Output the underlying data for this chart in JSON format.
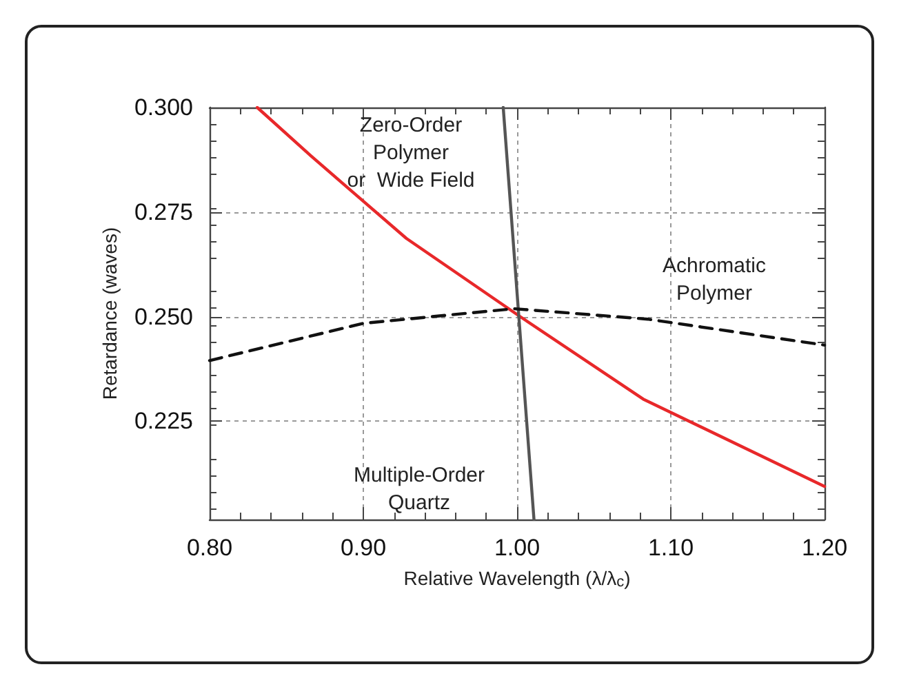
{
  "chart_data": {
    "type": "line",
    "xlabel": "Relative Wavelength (λ/λ$_{c}$)",
    "ylabel": "Retardance (waves)",
    "xlim": [
      0.8,
      1.2
    ],
    "ylim": [
      0.2015,
      0.3
    ],
    "xticks": [
      {
        "value": 0.8,
        "label": "0.80"
      },
      {
        "value": 0.9,
        "label": "0.90"
      },
      {
        "value": 1.0,
        "label": "1.00"
      },
      {
        "value": 1.1,
        "label": "1.10"
      },
      {
        "value": 1.2,
        "label": "1.20"
      }
    ],
    "yticks": [
      0.225,
      {
        "value": 0.25,
        "label": "0.250"
      },
      0.275,
      {
        "value": 0.3,
        "label": "0.300"
      }
    ],
    "grid": true,
    "marker": "none",
    "series": [
      {
        "color": "#e8282a",
        "line_style": "solid",
        "x": [
          0.831,
          0.866,
          0.928,
          1.002,
          1.082,
          1.2
        ],
        "values": [
          0.3,
          0.2884,
          0.2687,
          0.25,
          0.2303,
          0.2094
        ]
      },
      {
        "color": "#555555",
        "line_style": "solid",
        "x": [
          0.991,
          1.011
        ],
        "values": [
          0.3,
          0.2015
        ]
      },
      {
        "color": "#111111",
        "line_style": "dashed",
        "x": [
          0.8,
          0.9,
          0.998,
          1.085,
          1.2
        ],
        "values": [
          0.2395,
          0.2484,
          0.2519,
          0.2494,
          0.2432
        ]
      }
    ],
    "annotations": [
      "Zero-Order\nPolymer\nor  Wide Field",
      "Achromatic\nPolymer",
      "Multiple-Order\nQuartz"
    ]
  }
}
